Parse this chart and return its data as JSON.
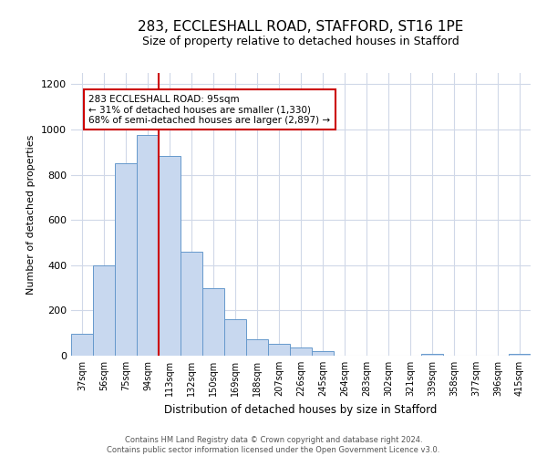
{
  "title": "283, ECCLESHALL ROAD, STAFFORD, ST16 1PE",
  "subtitle": "Size of property relative to detached houses in Stafford",
  "xlabel": "Distribution of detached houses by size in Stafford",
  "ylabel": "Number of detached properties",
  "bar_labels": [
    "37sqm",
    "56sqm",
    "75sqm",
    "94sqm",
    "113sqm",
    "132sqm",
    "150sqm",
    "169sqm",
    "188sqm",
    "207sqm",
    "226sqm",
    "245sqm",
    "264sqm",
    "283sqm",
    "302sqm",
    "321sqm",
    "339sqm",
    "358sqm",
    "377sqm",
    "396sqm",
    "415sqm"
  ],
  "bar_values": [
    95,
    400,
    850,
    975,
    885,
    460,
    298,
    160,
    73,
    52,
    35,
    20,
    0,
    0,
    0,
    0,
    10,
    0,
    0,
    0,
    10
  ],
  "bar_color": "#c8d8ef",
  "bar_edge_color": "#6699cc",
  "property_line_color": "#cc0000",
  "ylim": [
    0,
    1250
  ],
  "yticks": [
    0,
    200,
    400,
    600,
    800,
    1000,
    1200
  ],
  "annotation_text": "283 ECCLESHALL ROAD: 95sqm\n← 31% of detached houses are smaller (1,330)\n68% of semi-detached houses are larger (2,897) →",
  "annotation_box_color": "#ffffff",
  "annotation_box_edge": "#cc0000",
  "footer_line1": "Contains HM Land Registry data © Crown copyright and database right 2024.",
  "footer_line2": "Contains public sector information licensed under the Open Government Licence v3.0.",
  "background_color": "#ffffff",
  "grid_color": "#d0d8e8"
}
